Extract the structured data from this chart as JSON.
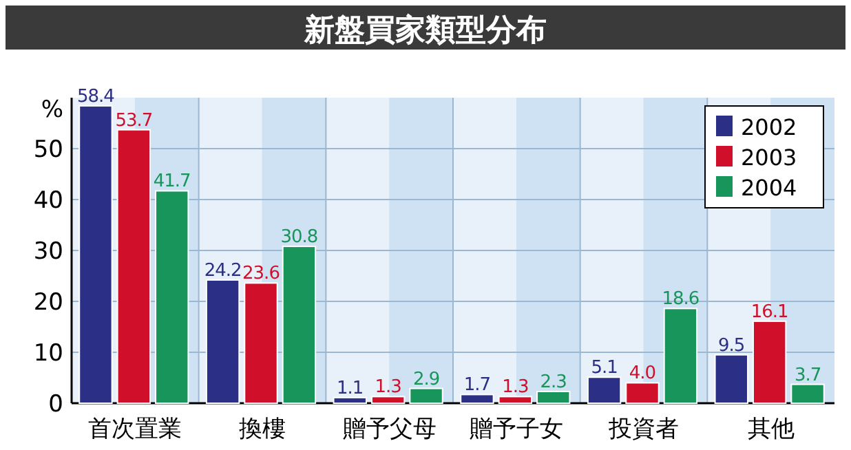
{
  "chart_data": {
    "type": "bar",
    "title": "新盤買家類型分布",
    "ylabel": "%",
    "categories": [
      "首次置業",
      "換樓",
      "贈予父母",
      "贈予子女",
      "投資者",
      "其他"
    ],
    "series": [
      {
        "name": "2002",
        "color": "#2b2f86",
        "values": [
          58.4,
          24.2,
          1.1,
          1.7,
          5.1,
          9.5
        ],
        "value_labels": [
          "58.4",
          "24.2",
          "1.1",
          "1.7",
          "5.1",
          "9.5"
        ]
      },
      {
        "name": "2003",
        "color": "#d0102a",
        "values": [
          53.7,
          23.6,
          1.3,
          1.3,
          4.0,
          16.1
        ],
        "value_labels": [
          "53.7",
          "23.6",
          "1.3",
          "1.3",
          "4.0",
          "16.1"
        ]
      },
      {
        "name": "2004",
        "color": "#17955a",
        "values": [
          41.7,
          30.8,
          2.9,
          2.3,
          18.6,
          3.7
        ],
        "value_labels": [
          "41.7",
          "30.8",
          "2.9",
          "2.3",
          "18.6",
          "3.7"
        ]
      }
    ],
    "ylim": [
      0,
      60
    ],
    "yticks": [
      0,
      10,
      20,
      30,
      40,
      50
    ],
    "grid": true,
    "legend": "top right"
  }
}
